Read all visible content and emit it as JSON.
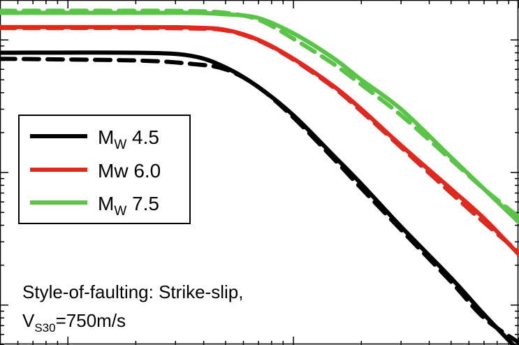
{
  "chart_data": {
    "type": "line",
    "x_scale": "log",
    "y_scale": "log",
    "x_range": [
      0.05,
      10
    ],
    "y_range": [
      0.005,
      2
    ],
    "legend": {
      "placement": "middle-left",
      "entries": [
        {
          "label": "M",
          "subscript": "W",
          "suffix": " 4.5",
          "color": "#000000"
        },
        {
          "label": "Mw 6.0",
          "subscript": "",
          "suffix": "",
          "color": "#e0281e"
        },
        {
          "label": "M",
          "subscript": "W",
          "suffix": " 7.5",
          "color": "#59c447"
        }
      ]
    },
    "annotation": {
      "line1": "Style-of-faulting: Strike-slip,",
      "line2_prefix": "V",
      "line2_sub": "S30",
      "line2_suffix": "=750m/s"
    },
    "series": [
      {
        "style": "solid",
        "color": "#000000",
        "x": [
          0.05,
          0.2,
          0.35,
          0.5,
          0.7,
          1.0,
          1.5,
          2.0,
          3.0,
          5.0,
          7.0,
          10.0
        ],
        "y": [
          0.8,
          0.8,
          0.76,
          0.62,
          0.44,
          0.27,
          0.135,
          0.082,
          0.039,
          0.016,
          0.0085,
          0.0045
        ]
      },
      {
        "style": "dashed",
        "color": "#000000",
        "x": [
          0.05,
          0.2,
          0.35,
          0.5,
          0.7,
          1.0,
          1.5,
          2.0,
          3.0,
          5.0,
          7.0,
          10.0
        ],
        "y": [
          0.72,
          0.7,
          0.66,
          0.6,
          0.44,
          0.26,
          0.128,
          0.076,
          0.037,
          0.015,
          0.008,
          0.0052
        ]
      },
      {
        "style": "solid",
        "color": "#e0281e",
        "x": [
          0.05,
          0.2,
          0.35,
          0.5,
          0.7,
          1.0,
          1.5,
          2.0,
          3.0,
          5.0,
          7.0,
          10.0
        ],
        "y": [
          1.25,
          1.25,
          1.24,
          1.19,
          1.0,
          0.72,
          0.45,
          0.3,
          0.16,
          0.075,
          0.045,
          0.024
        ]
      },
      {
        "style": "dashed",
        "color": "#e0281e",
        "x": [
          0.05,
          0.2,
          0.35,
          0.5,
          0.7,
          1.0,
          1.5,
          2.0,
          3.0,
          5.0,
          7.0,
          10.0
        ],
        "y": [
          1.23,
          1.23,
          1.22,
          1.18,
          0.99,
          0.71,
          0.44,
          0.29,
          0.155,
          0.07,
          0.042,
          0.025
        ]
      },
      {
        "style": "solid",
        "color": "#59c447",
        "x": [
          0.05,
          0.2,
          0.35,
          0.5,
          0.7,
          1.0,
          1.5,
          2.0,
          3.0,
          5.0,
          7.0,
          10.0
        ],
        "y": [
          1.6,
          1.6,
          1.6,
          1.56,
          1.46,
          1.12,
          0.73,
          0.5,
          0.3,
          0.13,
          0.075,
          0.042
        ]
      },
      {
        "style": "dashed",
        "color": "#59c447",
        "x": [
          0.05,
          0.2,
          0.35,
          0.5,
          0.7,
          1.0,
          1.5,
          2.0,
          3.0,
          5.0,
          7.0,
          10.0
        ],
        "y": [
          1.66,
          1.66,
          1.65,
          1.6,
          1.42,
          1.02,
          0.66,
          0.46,
          0.27,
          0.125,
          0.075,
          0.046
        ]
      }
    ]
  }
}
